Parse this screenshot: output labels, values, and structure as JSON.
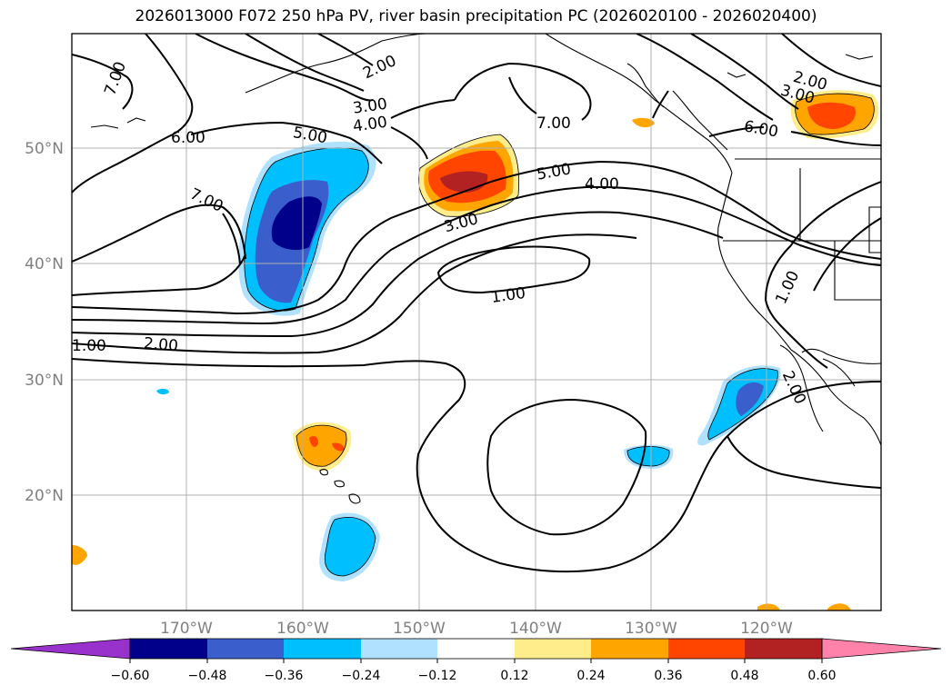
{
  "title": "2026013000 F072 250 hPa PV, river basin precipitation PC (2026020100 - 2026020400)",
  "map": {
    "lon_ticks": [
      "170°W",
      "160°W",
      "150°W",
      "140°W",
      "130°W",
      "120°W"
    ],
    "lat_ticks": [
      "50°N",
      "40°N",
      "30°N",
      "20°N"
    ],
    "contour_labels": [
      "7.00",
      "2.00",
      "3.00",
      "4.00",
      "6.00",
      "5.00",
      "7.00",
      "7.00",
      "5.00",
      "4.00",
      "3.00",
      "1.00",
      "1.00",
      "2.00",
      "2.00",
      "3.00",
      "6.00",
      "1.00",
      "2.00"
    ]
  },
  "colorbar": {
    "tick_labels": [
      "−0.60",
      "−0.48",
      "−0.36",
      "−0.24",
      "−0.12",
      "0.12",
      "0.24",
      "0.36",
      "0.48",
      "0.60"
    ],
    "colors": [
      "#9932cc",
      "#00008b",
      "#3a5fcd",
      "#00bfff",
      "#b0e2ff",
      "#ffffff",
      "#ffec8b",
      "#ffa500",
      "#ff4500",
      "#b22222",
      "#ff82ab"
    ]
  }
}
